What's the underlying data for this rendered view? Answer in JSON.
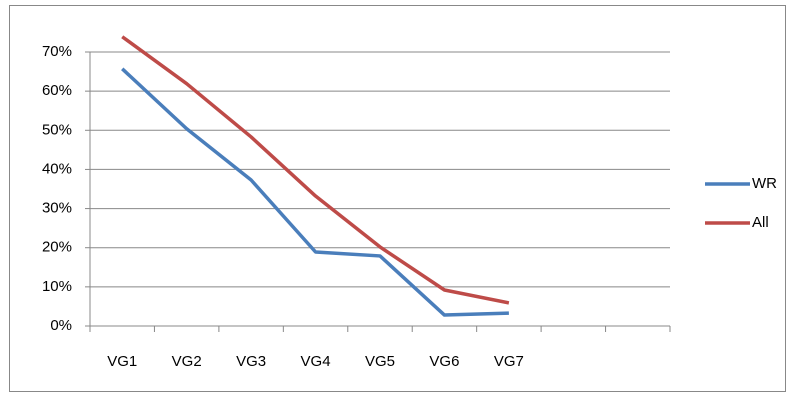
{
  "chart_data": {
    "type": "line",
    "categories": [
      "VG1",
      "VG2",
      "VG3",
      "VG4",
      "VG5",
      "VG6",
      "VG7",
      null,
      null
    ],
    "series": [
      {
        "name": "WR",
        "color": "#4a7ebb",
        "values": [
          65.7,
          50.4,
          37.3,
          18.9,
          17.9,
          2.8,
          3.3,
          null,
          null
        ]
      },
      {
        "name": "All",
        "color": "#be4b48",
        "values": [
          73.9,
          61.9,
          48.3,
          33.2,
          20.2,
          9.2,
          5.9,
          null,
          null
        ]
      }
    ],
    "ylim": [
      0,
      70
    ],
    "yticks": [
      {
        "value": 0,
        "label": "0%"
      },
      {
        "value": 10,
        "label": "10%"
      },
      {
        "value": 20,
        "label": "20%"
      },
      {
        "value": 30,
        "label": "30%"
      },
      {
        "value": 40,
        "label": "40%"
      },
      {
        "value": 50,
        "label": "50%"
      },
      {
        "value": 60,
        "label": "60%"
      },
      {
        "value": 70,
        "label": "70%"
      }
    ],
    "grid": true,
    "legend": "right"
  }
}
